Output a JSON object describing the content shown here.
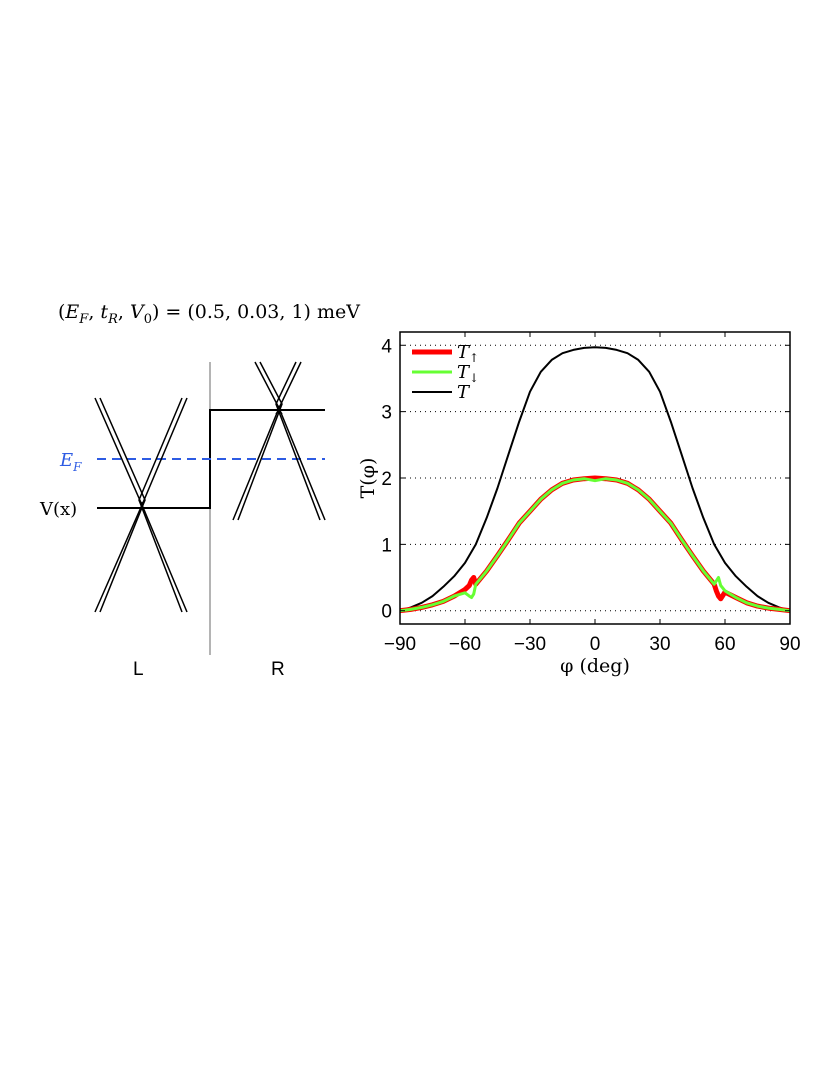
{
  "left_panel": {
    "params_label": "(E_F, t_R, V_0) = (0.5, 0.03, 1) meV",
    "params_parts": {
      "open": "(",
      "E": "E",
      "E_sub": "F",
      "t": "t",
      "t_sub": "R",
      "V": "V",
      "V_sub": "0",
      "values": ") = (0.5, 0.03, 1) meV"
    },
    "fermi_label": "E_F",
    "fermi_parts": {
      "base": "E",
      "sub": "F"
    },
    "potential_label": "V(x)",
    "region_left": "L",
    "region_right": "R",
    "colors": {
      "fermi": "#2d5be3",
      "divider": "#b4b4b4",
      "lines": "#000000"
    }
  },
  "chart_data": {
    "type": "line",
    "xlabel": "φ (deg)",
    "ylabel": "T(φ)",
    "xlim": [
      -90,
      90
    ],
    "ylim": [
      -0.2,
      4.2
    ],
    "xticks": [
      -90,
      -60,
      -30,
      0,
      30,
      60,
      90
    ],
    "xtick_labels": [
      "−90",
      "−60",
      "−30",
      "0",
      "30",
      "60",
      "90"
    ],
    "yticks": [
      0,
      1,
      2,
      3,
      4
    ],
    "ytick_labels": [
      "0",
      "1",
      "2",
      "3",
      "4"
    ],
    "grid": "horizontal dotted",
    "legend_position": "top-left",
    "series": [
      {
        "name": "T↑",
        "label_base": "T",
        "label_sub": "↑",
        "color": "#ff0000",
        "x": [
          -90,
          -85,
          -80,
          -75,
          -70,
          -65,
          -60,
          -58,
          -57,
          -56,
          -55,
          -50,
          -45,
          -40,
          -35,
          -30,
          -25,
          -20,
          -15,
          -10,
          -5,
          0,
          5,
          10,
          15,
          20,
          25,
          30,
          35,
          40,
          45,
          50,
          55,
          56,
          57,
          58,
          60,
          65,
          70,
          75,
          80,
          85,
          90
        ],
        "y": [
          0,
          0.02,
          0.05,
          0.09,
          0.14,
          0.22,
          0.32,
          0.38,
          0.46,
          0.5,
          0.4,
          0.6,
          0.83,
          1.07,
          1.32,
          1.5,
          1.68,
          1.82,
          1.92,
          1.97,
          1.99,
          2.0,
          1.99,
          1.97,
          1.92,
          1.82,
          1.68,
          1.5,
          1.32,
          1.07,
          0.83,
          0.6,
          0.4,
          0.3,
          0.22,
          0.18,
          0.28,
          0.2,
          0.12,
          0.07,
          0.04,
          0.02,
          0
        ]
      },
      {
        "name": "T↓",
        "label_base": "T",
        "label_sub": "↓",
        "color": "#66ff33",
        "x": [
          -90,
          -85,
          -80,
          -75,
          -70,
          -65,
          -60,
          -58,
          -57,
          -56,
          -55,
          -50,
          -45,
          -40,
          -35,
          -30,
          -25,
          -20,
          -15,
          -10,
          -5,
          0,
          5,
          10,
          15,
          20,
          25,
          30,
          35,
          40,
          45,
          50,
          55,
          56,
          57,
          58,
          60,
          65,
          70,
          75,
          80,
          85,
          90
        ],
        "y": [
          0,
          0.02,
          0.05,
          0.09,
          0.14,
          0.22,
          0.27,
          0.22,
          0.2,
          0.25,
          0.4,
          0.6,
          0.83,
          1.07,
          1.32,
          1.5,
          1.68,
          1.82,
          1.92,
          1.97,
          1.99,
          1.96,
          1.99,
          1.97,
          1.92,
          1.82,
          1.68,
          1.5,
          1.32,
          1.07,
          0.83,
          0.6,
          0.4,
          0.45,
          0.5,
          0.38,
          0.3,
          0.2,
          0.12,
          0.07,
          0.04,
          0.02,
          0
        ]
      },
      {
        "name": "T",
        "label_base": "T",
        "label_sub": "",
        "color": "#000000",
        "x": [
          -90,
          -85,
          -80,
          -75,
          -70,
          -65,
          -60,
          -55,
          -50,
          -45,
          -40,
          -35,
          -30,
          -25,
          -20,
          -15,
          -10,
          -5,
          0,
          5,
          10,
          15,
          20,
          25,
          30,
          35,
          40,
          45,
          50,
          55,
          60,
          65,
          70,
          75,
          80,
          85,
          90
        ],
        "y": [
          0,
          0.05,
          0.12,
          0.22,
          0.36,
          0.52,
          0.72,
          1.0,
          1.4,
          1.85,
          2.35,
          2.85,
          3.3,
          3.6,
          3.78,
          3.88,
          3.93,
          3.96,
          3.97,
          3.96,
          3.93,
          3.88,
          3.78,
          3.6,
          3.3,
          2.85,
          2.35,
          1.85,
          1.4,
          1.0,
          0.72,
          0.52,
          0.36,
          0.22,
          0.12,
          0.05,
          0
        ]
      }
    ]
  }
}
